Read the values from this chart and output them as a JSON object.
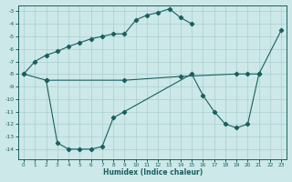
{
  "bg_color": "#cce8e8",
  "grid_color": "#aacfcf",
  "line_color": "#1a5f5f",
  "xlabel": "Humidex (Indice chaleur)",
  "xlim": [
    -0.5,
    23.5
  ],
  "ylim": [
    -14.8,
    -2.5
  ],
  "yticks": [
    -14,
    -13,
    -12,
    -11,
    -10,
    -9,
    -8,
    -7,
    -6,
    -5,
    -4,
    -3
  ],
  "xticks": [
    0,
    1,
    2,
    3,
    4,
    5,
    6,
    7,
    8,
    9,
    10,
    11,
    12,
    13,
    14,
    15,
    16,
    17,
    18,
    19,
    20,
    21,
    22,
    23
  ],
  "line1_x": [
    0,
    1,
    2,
    3,
    4,
    5,
    6,
    7,
    8,
    9,
    10,
    11,
    12,
    13,
    14,
    15
  ],
  "line1_y": [
    -8.0,
    -7.0,
    -6.5,
    -6.2,
    -5.8,
    -5.5,
    -5.2,
    -5.0,
    -4.8,
    -4.8,
    -3.7,
    -3.3,
    -3.1,
    -2.8,
    -3.5,
    -4.0
  ],
  "line2_x": [
    0,
    2,
    3,
    4,
    5,
    6,
    7,
    8,
    9,
    15,
    16,
    17,
    18,
    19,
    20,
    21,
    23
  ],
  "line2_y": [
    -8.0,
    -8.5,
    -13.5,
    -14.0,
    -14.0,
    -14.0,
    -13.8,
    -11.5,
    -11.0,
    -8.0,
    -9.7,
    -11.0,
    -12.0,
    -12.3,
    -12.0,
    -8.0,
    -4.5
  ],
  "line3_x": [
    2,
    9,
    14,
    19,
    20,
    21
  ],
  "line3_y": [
    -8.5,
    -8.5,
    -8.2,
    -8.0,
    -8.0,
    -8.0
  ]
}
